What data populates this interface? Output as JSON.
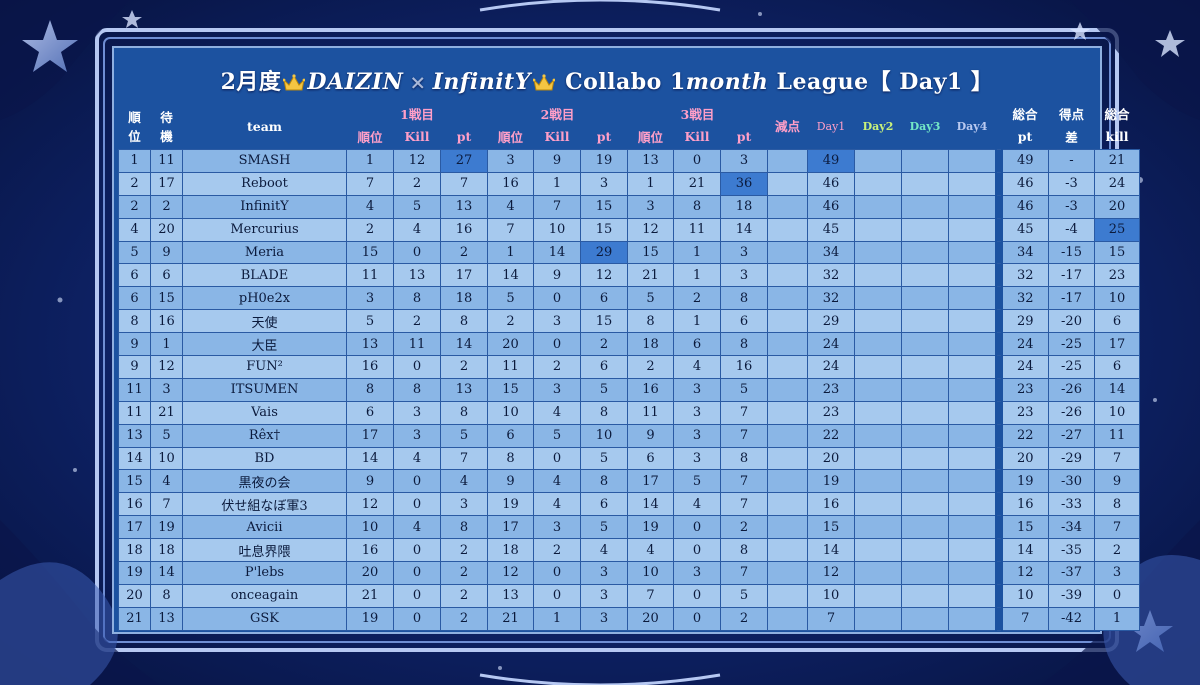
{
  "title": {
    "part1": "2月度",
    "part2": "DAIZIN",
    "x": "×",
    "part3": "InfinitY",
    "part4": "Collabo 1",
    "part5": "month",
    "part6": " League【 Day1 】"
  },
  "headers": {
    "rank": "順\n位",
    "wait": "待\n機",
    "team": "team",
    "match1": "1戦目",
    "match2": "2戦目",
    "match3": "3戦目",
    "sub_rank": "順位",
    "sub_kill": "Kill",
    "sub_pt": "pt",
    "penalty": "減点",
    "day1": "Day1",
    "day2": "Day2",
    "day3": "Day3",
    "day4": "Day4",
    "total_pt_top": "総合",
    "total_pt_bottom": "pt",
    "diff_top": "得点",
    "diff_bottom": "差",
    "total_kill_top": "総合",
    "total_kill_bottom": "kill"
  },
  "colors": {
    "panel": "#1c52a0",
    "row_odd": "#8ab6e6",
    "row_even": "#a6c9ee",
    "highlight": "#3d7bd0",
    "match_header": "#ff9fc8",
    "day2": "#c9f27a",
    "day3": "#74e8c6",
    "day4": "#b9c9f0"
  },
  "rows": [
    {
      "rank": "1",
      "wait": "11",
      "team": "SMASH",
      "m1": [
        "1",
        "12",
        "27"
      ],
      "m2": [
        "3",
        "9",
        "19"
      ],
      "m3": [
        "13",
        "0",
        "3"
      ],
      "penalty": "",
      "day1": "49",
      "day2": "",
      "day3": "",
      "day4": "",
      "total": "49",
      "diff": "-",
      "kill": "21",
      "hl": [
        "m1pt",
        "day1"
      ]
    },
    {
      "rank": "2",
      "wait": "17",
      "team": "Reboot",
      "m1": [
        "7",
        "2",
        "7"
      ],
      "m2": [
        "16",
        "1",
        "3"
      ],
      "m3": [
        "1",
        "21",
        "36"
      ],
      "penalty": "",
      "day1": "46",
      "day2": "",
      "day3": "",
      "day4": "",
      "total": "46",
      "diff": "-3",
      "kill": "24",
      "hl": [
        "m3pt"
      ]
    },
    {
      "rank": "2",
      "wait": "2",
      "team": "InfinitY",
      "m1": [
        "4",
        "5",
        "13"
      ],
      "m2": [
        "4",
        "7",
        "15"
      ],
      "m3": [
        "3",
        "8",
        "18"
      ],
      "penalty": "",
      "day1": "46",
      "day2": "",
      "day3": "",
      "day4": "",
      "total": "46",
      "diff": "-3",
      "kill": "20",
      "hl": []
    },
    {
      "rank": "4",
      "wait": "20",
      "team": "Mercurius",
      "m1": [
        "2",
        "4",
        "16"
      ],
      "m2": [
        "7",
        "10",
        "15"
      ],
      "m3": [
        "12",
        "11",
        "14"
      ],
      "penalty": "",
      "day1": "45",
      "day2": "",
      "day3": "",
      "day4": "",
      "total": "45",
      "diff": "-4",
      "kill": "25",
      "hl": [
        "kill"
      ]
    },
    {
      "rank": "5",
      "wait": "9",
      "team": "Meria",
      "m1": [
        "15",
        "0",
        "2"
      ],
      "m2": [
        "1",
        "14",
        "29"
      ],
      "m3": [
        "15",
        "1",
        "3"
      ],
      "penalty": "",
      "day1": "34",
      "day2": "",
      "day3": "",
      "day4": "",
      "total": "34",
      "diff": "-15",
      "kill": "15",
      "hl": [
        "m2pt"
      ]
    },
    {
      "rank": "6",
      "wait": "6",
      "team": "BLADE",
      "m1": [
        "11",
        "13",
        "17"
      ],
      "m2": [
        "14",
        "9",
        "12"
      ],
      "m3": [
        "21",
        "1",
        "3"
      ],
      "penalty": "",
      "day1": "32",
      "day2": "",
      "day3": "",
      "day4": "",
      "total": "32",
      "diff": "-17",
      "kill": "23",
      "hl": []
    },
    {
      "rank": "6",
      "wait": "15",
      "team": "pH0e2x",
      "m1": [
        "3",
        "8",
        "18"
      ],
      "m2": [
        "5",
        "0",
        "6"
      ],
      "m3": [
        "5",
        "2",
        "8"
      ],
      "penalty": "",
      "day1": "32",
      "day2": "",
      "day3": "",
      "day4": "",
      "total": "32",
      "diff": "-17",
      "kill": "10",
      "hl": []
    },
    {
      "rank": "8",
      "wait": "16",
      "team": "天使",
      "m1": [
        "5",
        "2",
        "8"
      ],
      "m2": [
        "2",
        "3",
        "15"
      ],
      "m3": [
        "8",
        "1",
        "6"
      ],
      "penalty": "",
      "day1": "29",
      "day2": "",
      "day3": "",
      "day4": "",
      "total": "29",
      "diff": "-20",
      "kill": "6",
      "hl": []
    },
    {
      "rank": "9",
      "wait": "1",
      "team": "大臣",
      "m1": [
        "13",
        "11",
        "14"
      ],
      "m2": [
        "20",
        "0",
        "2"
      ],
      "m3": [
        "18",
        "6",
        "8"
      ],
      "penalty": "",
      "day1": "24",
      "day2": "",
      "day3": "",
      "day4": "",
      "total": "24",
      "diff": "-25",
      "kill": "17",
      "hl": []
    },
    {
      "rank": "9",
      "wait": "12",
      "team": "FUN²",
      "m1": [
        "16",
        "0",
        "2"
      ],
      "m2": [
        "11",
        "2",
        "6"
      ],
      "m3": [
        "2",
        "4",
        "16"
      ],
      "penalty": "",
      "day1": "24",
      "day2": "",
      "day3": "",
      "day4": "",
      "total": "24",
      "diff": "-25",
      "kill": "6",
      "hl": []
    },
    {
      "rank": "11",
      "wait": "3",
      "team": "ITSUMEN",
      "m1": [
        "8",
        "8",
        "13"
      ],
      "m2": [
        "15",
        "3",
        "5"
      ],
      "m3": [
        "16",
        "3",
        "5"
      ],
      "penalty": "",
      "day1": "23",
      "day2": "",
      "day3": "",
      "day4": "",
      "total": "23",
      "diff": "-26",
      "kill": "14",
      "hl": []
    },
    {
      "rank": "11",
      "wait": "21",
      "team": "Vais",
      "m1": [
        "6",
        "3",
        "8"
      ],
      "m2": [
        "10",
        "4",
        "8"
      ],
      "m3": [
        "11",
        "3",
        "7"
      ],
      "penalty": "",
      "day1": "23",
      "day2": "",
      "day3": "",
      "day4": "",
      "total": "23",
      "diff": "-26",
      "kill": "10",
      "hl": []
    },
    {
      "rank": "13",
      "wait": "5",
      "team": "Rêx†",
      "m1": [
        "17",
        "3",
        "5"
      ],
      "m2": [
        "6",
        "5",
        "10"
      ],
      "m3": [
        "9",
        "3",
        "7"
      ],
      "penalty": "",
      "day1": "22",
      "day2": "",
      "day3": "",
      "day4": "",
      "total": "22",
      "diff": "-27",
      "kill": "11",
      "hl": []
    },
    {
      "rank": "14",
      "wait": "10",
      "team": "BD",
      "m1": [
        "14",
        "4",
        "7"
      ],
      "m2": [
        "8",
        "0",
        "5"
      ],
      "m3": [
        "6",
        "3",
        "8"
      ],
      "penalty": "",
      "day1": "20",
      "day2": "",
      "day3": "",
      "day4": "",
      "total": "20",
      "diff": "-29",
      "kill": "7",
      "hl": []
    },
    {
      "rank": "15",
      "wait": "4",
      "team": "黒夜の会",
      "m1": [
        "9",
        "0",
        "4"
      ],
      "m2": [
        "9",
        "4",
        "8"
      ],
      "m3": [
        "17",
        "5",
        "7"
      ],
      "penalty": "",
      "day1": "19",
      "day2": "",
      "day3": "",
      "day4": "",
      "total": "19",
      "diff": "-30",
      "kill": "9",
      "hl": []
    },
    {
      "rank": "16",
      "wait": "7",
      "team": "伏せ組なぼ軍3",
      "m1": [
        "12",
        "0",
        "3"
      ],
      "m2": [
        "19",
        "4",
        "6"
      ],
      "m3": [
        "14",
        "4",
        "7"
      ],
      "penalty": "",
      "day1": "16",
      "day2": "",
      "day3": "",
      "day4": "",
      "total": "16",
      "diff": "-33",
      "kill": "8",
      "hl": []
    },
    {
      "rank": "17",
      "wait": "19",
      "team": "Avicii",
      "m1": [
        "10",
        "4",
        "8"
      ],
      "m2": [
        "17",
        "3",
        "5"
      ],
      "m3": [
        "19",
        "0",
        "2"
      ],
      "penalty": "",
      "day1": "15",
      "day2": "",
      "day3": "",
      "day4": "",
      "total": "15",
      "diff": "-34",
      "kill": "7",
      "hl": []
    },
    {
      "rank": "18",
      "wait": "18",
      "team": "吐息界隈",
      "m1": [
        "16",
        "0",
        "2"
      ],
      "m2": [
        "18",
        "2",
        "4"
      ],
      "m3": [
        "4",
        "0",
        "8"
      ],
      "penalty": "",
      "day1": "14",
      "day2": "",
      "day3": "",
      "day4": "",
      "total": "14",
      "diff": "-35",
      "kill": "2",
      "hl": []
    },
    {
      "rank": "19",
      "wait": "14",
      "team": "P'lebs",
      "m1": [
        "20",
        "0",
        "2"
      ],
      "m2": [
        "12",
        "0",
        "3"
      ],
      "m3": [
        "10",
        "3",
        "7"
      ],
      "penalty": "",
      "day1": "12",
      "day2": "",
      "day3": "",
      "day4": "",
      "total": "12",
      "diff": "-37",
      "kill": "3",
      "hl": []
    },
    {
      "rank": "20",
      "wait": "8",
      "team": "onceagain",
      "m1": [
        "21",
        "0",
        "2"
      ],
      "m2": [
        "13",
        "0",
        "3"
      ],
      "m3": [
        "7",
        "0",
        "5"
      ],
      "penalty": "",
      "day1": "10",
      "day2": "",
      "day3": "",
      "day4": "",
      "total": "10",
      "diff": "-39",
      "kill": "0",
      "hl": []
    },
    {
      "rank": "21",
      "wait": "13",
      "team": "GSK",
      "m1": [
        "19",
        "0",
        "2"
      ],
      "m2": [
        "21",
        "1",
        "3"
      ],
      "m3": [
        "20",
        "0",
        "2"
      ],
      "penalty": "",
      "day1": "7",
      "day2": "",
      "day3": "",
      "day4": "",
      "total": "7",
      "diff": "-42",
      "kill": "1",
      "hl": []
    }
  ]
}
